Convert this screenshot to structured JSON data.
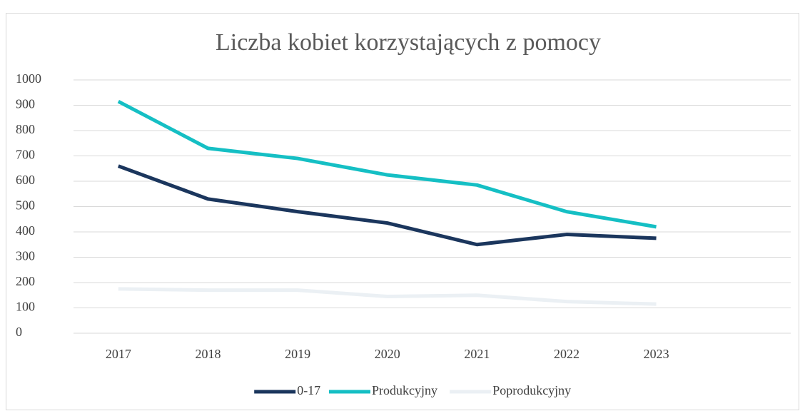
{
  "chart_data": {
    "type": "line",
    "title": "Liczba kobiet korzystających z pomocy",
    "categories": [
      "2017",
      "2018",
      "2019",
      "2020",
      "2021",
      "2022",
      "2023",
      null
    ],
    "series": [
      {
        "name": "0-17",
        "color": "#1b365d",
        "values": [
          660,
          530,
          480,
          435,
          350,
          390,
          375,
          null
        ]
      },
      {
        "name": "Produkcyjny",
        "color": "#15bfc4",
        "values": [
          915,
          730,
          690,
          625,
          585,
          480,
          420,
          null
        ]
      },
      {
        "name": "Poprodukcyjny",
        "color": "#ebf0f4",
        "values": [
          175,
          170,
          170,
          145,
          150,
          125,
          115,
          null
        ]
      }
    ],
    "ylim": [
      0,
      1000
    ],
    "yticks": [
      0,
      100,
      200,
      300,
      400,
      500,
      600,
      700,
      800,
      900,
      1000
    ],
    "grid": true,
    "legend": "bottom"
  }
}
